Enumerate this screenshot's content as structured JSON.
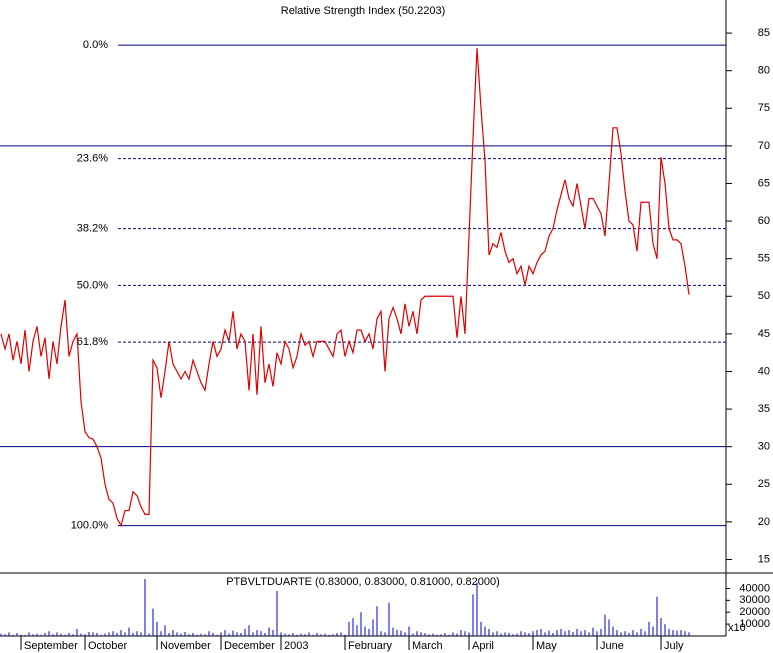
{
  "chart_data": {
    "type": "line",
    "title": "Relative Strength Index (50.2203)",
    "categories": [
      null,
      null,
      null,
      null,
      null,
      "September",
      null,
      null,
      null,
      null,
      null,
      null,
      null,
      null,
      null,
      null,
      null,
      null,
      null,
      null,
      null,
      "October",
      null,
      null,
      null,
      null,
      null,
      null,
      null,
      null,
      null,
      null,
      null,
      null,
      null,
      null,
      null,
      null,
      null,
      "November",
      null,
      null,
      null,
      null,
      null,
      null,
      null,
      null,
      null,
      null,
      null,
      null,
      null,
      null,
      null,
      "December",
      null,
      null,
      null,
      null,
      null,
      null,
      null,
      null,
      null,
      null,
      null,
      null,
      null,
      null,
      "2003",
      null,
      null,
      null,
      null,
      null,
      null,
      null,
      null,
      null,
      null,
      null,
      null,
      null,
      null,
      null,
      "February",
      null,
      null,
      null,
      null,
      null,
      null,
      null,
      null,
      null,
      null,
      null,
      null,
      null,
      null,
      null,
      "March",
      null,
      null,
      null,
      null,
      null,
      null,
      null,
      null,
      null,
      null,
      null,
      null,
      null,
      null,
      "April",
      null,
      null,
      null,
      null,
      null,
      null,
      null,
      null,
      null,
      null,
      null,
      null,
      null,
      null,
      null,
      "May",
      null,
      null,
      null,
      null,
      null,
      null,
      null,
      null,
      null,
      null,
      null,
      null,
      null,
      null,
      null,
      "June",
      null,
      null,
      null,
      null,
      null,
      null,
      null,
      null,
      null,
      null,
      null,
      null,
      null,
      null,
      null,
      "July",
      null,
      null,
      null,
      null,
      null,
      null,
      null
    ],
    "series": [
      {
        "color": "#e00000",
        "values": [
          45,
          43,
          45,
          41.5,
          44,
          41,
          45.5,
          40,
          44,
          46,
          42,
          44.5,
          39,
          44,
          41,
          46,
          49.5,
          42,
          44,
          45,
          36,
          32,
          31.2,
          31,
          30,
          28.5,
          25,
          23,
          22.5,
          20.5,
          19.5,
          21.5,
          21.5,
          24,
          23.5,
          22,
          21,
          21,
          41.5,
          40.5,
          36.5,
          40,
          44,
          41,
          40,
          39,
          40,
          39,
          41.5,
          40,
          38.5,
          37.5,
          41,
          44,
          42,
          43,
          45.5,
          44,
          48,
          43,
          45,
          44,
          37.5,
          45,
          36.9,
          46,
          38.5,
          41,
          38,
          42.5,
          41,
          44,
          43,
          40.5,
          42,
          45,
          43.5,
          44,
          42,
          44,
          44,
          44,
          43,
          42,
          45,
          45.5,
          42,
          44,
          42.5,
          45.5,
          45.5,
          44,
          45,
          43,
          47,
          48,
          40,
          47,
          48.5,
          47,
          45,
          49,
          46,
          48,
          45,
          49.5,
          50,
          50,
          50,
          50,
          50,
          50,
          50,
          50,
          44.5,
          50,
          45,
          58,
          71,
          83,
          75,
          68,
          55.5,
          57,
          56.5,
          58.5,
          56,
          54.5,
          55,
          53,
          54,
          51.5,
          54,
          53,
          54.5,
          55.5,
          56,
          58,
          59,
          61.5,
          63.5,
          65.5,
          63,
          62,
          65,
          62,
          59,
          63,
          63,
          62,
          61,
          58,
          65,
          72.4,
          72.4,
          69,
          64,
          60,
          59.5,
          56,
          62.5,
          62.5,
          62.5,
          57,
          55,
          68.5,
          65,
          59,
          57.5,
          57.5,
          57,
          54,
          50.2203
        ]
      }
    ],
    "ylim": [
      13.2,
      89.4
    ],
    "yticks": [
      15,
      20,
      25,
      30,
      35,
      40,
      45,
      50,
      55,
      60,
      65,
      70,
      75,
      80,
      85
    ],
    "hlines": [
      70,
      30
    ],
    "fib_levels": [
      {
        "value": 83.4,
        "label": "0.0%"
      },
      {
        "value": 68.3,
        "label": "23.6%"
      },
      {
        "value": 59.0,
        "label": "38.2%"
      },
      {
        "value": 51.45,
        "label": "50.0%"
      },
      {
        "value": 43.9,
        "label": "61.8%"
      },
      {
        "value": 19.5,
        "label": "100.0%"
      }
    ],
    "volume": {
      "title": "PTBVLTDUARTE (0.83000, 0.83000, 0.81000, 0.82000)",
      "color": "#0000cc",
      "ylim": [
        0,
        53000
      ],
      "yticks": [
        10000,
        20000,
        30000,
        40000
      ],
      "scale_label": "x10",
      "values": [
        2000,
        1500,
        3000,
        1000,
        2500,
        1200,
        800,
        3000,
        1500,
        2000,
        1000,
        2500,
        4000,
        1500,
        3000,
        2000,
        1000,
        2500,
        1500,
        6000,
        2000,
        1500,
        3500,
        3000,
        2500,
        1000,
        2000,
        3000,
        4000,
        2500,
        5000,
        3000,
        7000,
        2500,
        4000,
        3000,
        48000,
        2000,
        23000,
        12000,
        4000,
        9000,
        2500,
        5000,
        3000,
        2000,
        3500,
        1500,
        2500,
        1000,
        2000,
        1500,
        4000,
        2500,
        1000,
        3000,
        5000,
        2000,
        4500,
        3000,
        2500,
        6000,
        9000,
        3000,
        5000,
        4000,
        2500,
        7000,
        5000,
        38000,
        3000,
        2000,
        1500,
        2500,
        1000,
        2000,
        1500,
        3000,
        1000,
        2500,
        1500,
        2000,
        1000,
        1500,
        2500,
        3000,
        1000,
        12000,
        15000,
        9000,
        20000,
        8000,
        6000,
        14000,
        25000,
        4000,
        3000,
        28000,
        7000,
        5000,
        4500,
        3000,
        8000,
        2000,
        4000,
        3000,
        2500,
        1500,
        2000,
        1000,
        1500,
        2500,
        1000,
        3000,
        2000,
        5000,
        4000,
        3000,
        35000,
        45000,
        12000,
        8000,
        6000,
        3000,
        4000,
        2000,
        3000,
        2500,
        1500,
        2000,
        4000,
        3000,
        2500,
        4000,
        5000,
        6000,
        3000,
        4500,
        2500,
        5000,
        6000,
        4000,
        5000,
        3500,
        6000,
        4000,
        5000,
        3000,
        7000,
        4000,
        6000,
        18000,
        14000,
        8000,
        5000,
        3000,
        4000,
        2500,
        5000,
        3000,
        6000,
        4000,
        12000,
        8000,
        33000,
        15000,
        10000,
        6000,
        5000,
        4500,
        5000,
        4000,
        3000
      ]
    }
  }
}
